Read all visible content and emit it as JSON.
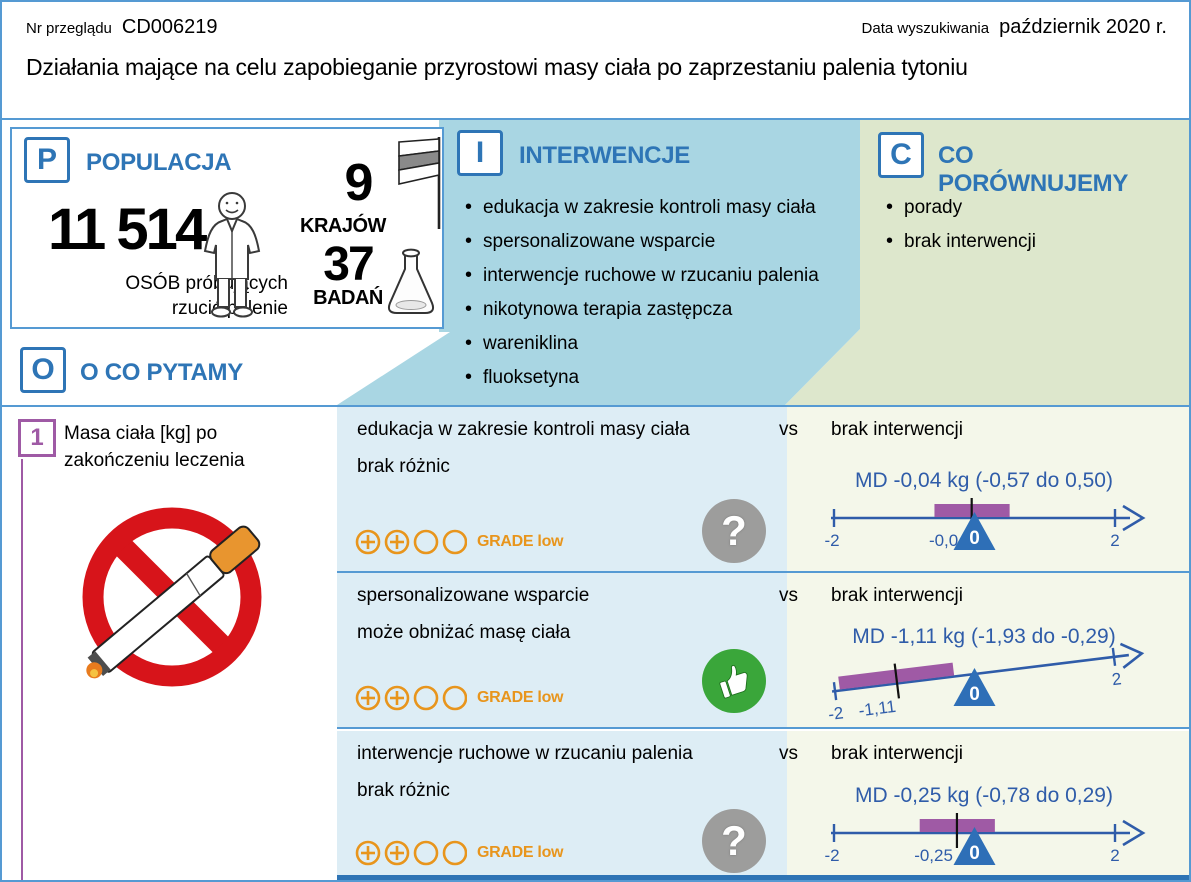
{
  "header": {
    "review_label": "Nr przeglądu",
    "review_id": "CD006219",
    "search_date_label": "Data wyszukiwania",
    "search_date": "październik 2020 r.",
    "title": "Działania mające na celu zapobieganie przyrostowi masy ciała po zaprzestaniu palenia tytoniu"
  },
  "population": {
    "letter": "P",
    "heading": "POPULACJA",
    "count": "11 514",
    "count_label_line1": "OSÓB próbujących",
    "count_label_line2": "rzucić palenie",
    "countries_value": "9",
    "countries_label": "KRAJÓW",
    "studies_value": "37",
    "studies_label": "BADAŃ"
  },
  "interventions": {
    "letter": "I",
    "heading": "INTERWENCJE",
    "items": [
      "edukacja w zakresie kontroli masy ciała",
      "spersonalizowane wsparcie",
      "interwencje ruchowe w rzucaniu palenia",
      "nikotynowa terapia zastępcza",
      "wareniklina",
      "fluoksetyna"
    ]
  },
  "comparators": {
    "letter": "C",
    "heading": "CO PORÓWNUJEMY",
    "items": [
      "porady",
      "brak interwencji"
    ]
  },
  "outcomes": {
    "letter": "O",
    "heading": "O CO PYTAMY",
    "question_number": "1",
    "question": "Masa ciała [kg] po zakończeniu leczenia"
  },
  "glyphs": {
    "question": "?",
    "zero_marker": "0"
  },
  "grade_label": "GRADE low",
  "vs_label": "vs",
  "rows": [
    {
      "intervention": "edukacja w zakresie kontroli masy ciała",
      "comparator": "brak interwencji",
      "result": "brak różnic",
      "icon": "question",
      "md_label": "MD -0,04 kg (-0,57 do 0,50)",
      "value": -0.04,
      "value_label": "-0,04",
      "ci_low": -0.57,
      "ci_high": 0.5,
      "axis_min": -2,
      "axis_max": 2,
      "axis_min_label": "-2",
      "axis_max_label": "2",
      "tilt_deg": 0
    },
    {
      "intervention": "spersonalizowane wsparcie",
      "comparator": "brak interwencji",
      "result": "może obniżać masę ciała",
      "icon": "thumbs-up",
      "md_label": "MD -1,11 kg (-1,93 do -0,29)",
      "value": -1.11,
      "value_label": "-1,11",
      "ci_low": -1.93,
      "ci_high": -0.29,
      "axis_min": -2,
      "axis_max": 2,
      "axis_min_label": "-2",
      "axis_max_label": "2",
      "tilt_deg": -7
    },
    {
      "intervention": "interwencje ruchowe w rzucaniu palenia",
      "comparator": "brak interwencji",
      "result": "brak różnic",
      "icon": "question",
      "md_label": "MD -0,25 kg (-0,78 do 0,29)",
      "value": -0.25,
      "value_label": "-0,25",
      "ci_low": -0.78,
      "ci_high": 0.29,
      "axis_min": -2,
      "axis_max": 2,
      "axis_min_label": "-2",
      "axis_max_label": "2",
      "tilt_deg": 0
    }
  ],
  "colors": {
    "accent_blue": "#2e75b6",
    "border_blue": "#559ad3",
    "band_blue": "#a9d6e3",
    "band_green": "#dde7cc",
    "row_blue": "#ddedf5",
    "row_green": "#f4f7ea",
    "purple": "#9f5aa5",
    "grade_orange": "#e8951c",
    "axis_blue": "#2f5ca9",
    "triangle_blue": "#2e6fb7",
    "bottom_bar_blue": "#2e74b5",
    "neutral_gray": "#9d9d9c",
    "positive_green": "#3aa63a",
    "no_smoking_red": "#d7141a"
  }
}
